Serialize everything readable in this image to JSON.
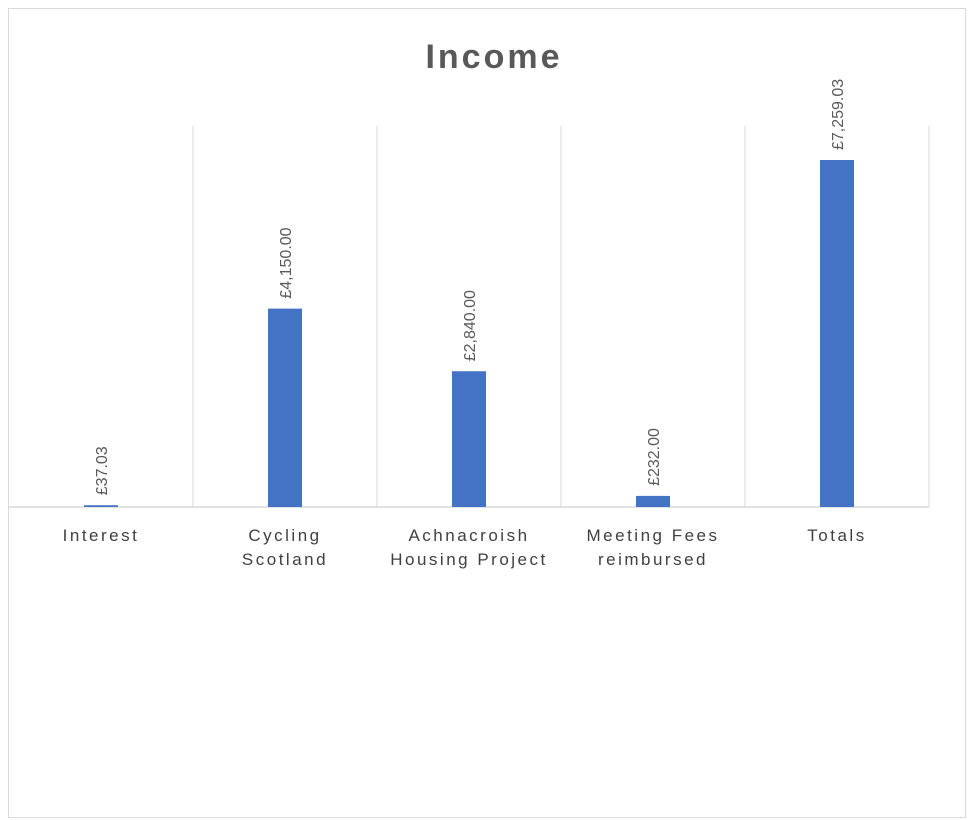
{
  "chart_data": {
    "type": "bar",
    "title": "Income",
    "categories": [
      [
        "Interest"
      ],
      [
        "Cycling",
        "Scotland"
      ],
      [
        "Achnacroish",
        "Housing Project"
      ],
      [
        "Meeting Fees",
        "reimbursed"
      ],
      [
        "Totals"
      ]
    ],
    "values": [
      37.03,
      4150.0,
      2840.0,
      232.0,
      7259.03
    ],
    "data_labels": [
      "£37.03",
      "£4,150.00",
      "£2,840.00",
      "£232.00",
      "£7,259.03"
    ],
    "ylim": [
      0,
      7259.03
    ],
    "bar_color": "#4472C4",
    "gridlines": "vertical category separators",
    "legend": "none"
  }
}
